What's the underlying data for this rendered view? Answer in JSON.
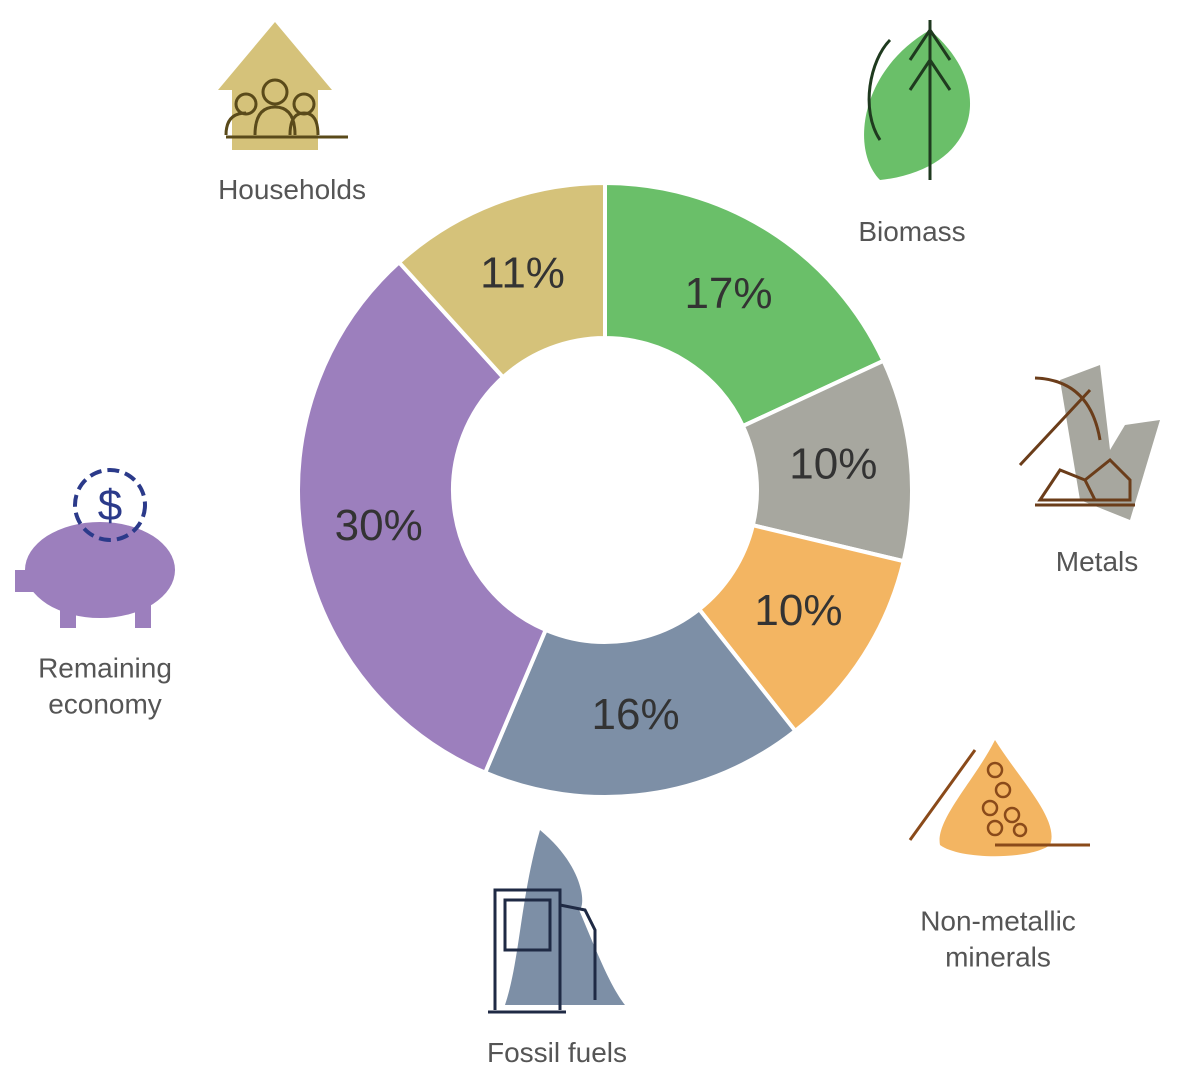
{
  "chart_data": {
    "type": "donut",
    "categories": [
      "Biomass",
      "Metals",
      "Non-metallic minerals",
      "Fossil fuels",
      "Remaining economy",
      "Households"
    ],
    "values": [
      17,
      10,
      10,
      16,
      30,
      11
    ],
    "value_labels": [
      "17%",
      "10%",
      "10%",
      "16%",
      "30%",
      "11%"
    ],
    "colors": [
      "#6abf69",
      "#a7a79f",
      "#f3b562",
      "#7d8fa6",
      "#9c7fbd",
      "#d5c27a"
    ]
  }
}
